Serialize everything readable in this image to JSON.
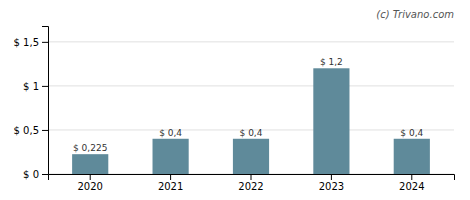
{
  "chart_data": {
    "type": "bar",
    "annotations": [
      "(c) Trivano.com"
    ],
    "categories": [
      "2020",
      "2021",
      "2022",
      "2023",
      "2024"
    ],
    "values": [
      0.225,
      0.4,
      0.4,
      1.2,
      0.4
    ],
    "value_labels": [
      "$ 0,225",
      "$ 0,4",
      "$ 0,4",
      "$ 1,2",
      "$ 0,4"
    ],
    "data_labels": true,
    "color": "#5f8a9a",
    "ylim": [
      0,
      1.68
    ],
    "yticks": [
      {
        "value": 0,
        "label": "$ 0"
      },
      {
        "value": 0.5,
        "label": "$ 0,5"
      },
      {
        "value": 1.0,
        "label": "$ 1"
      },
      {
        "value": 1.5,
        "label": "$ 1,5"
      }
    ],
    "grid": true
  }
}
